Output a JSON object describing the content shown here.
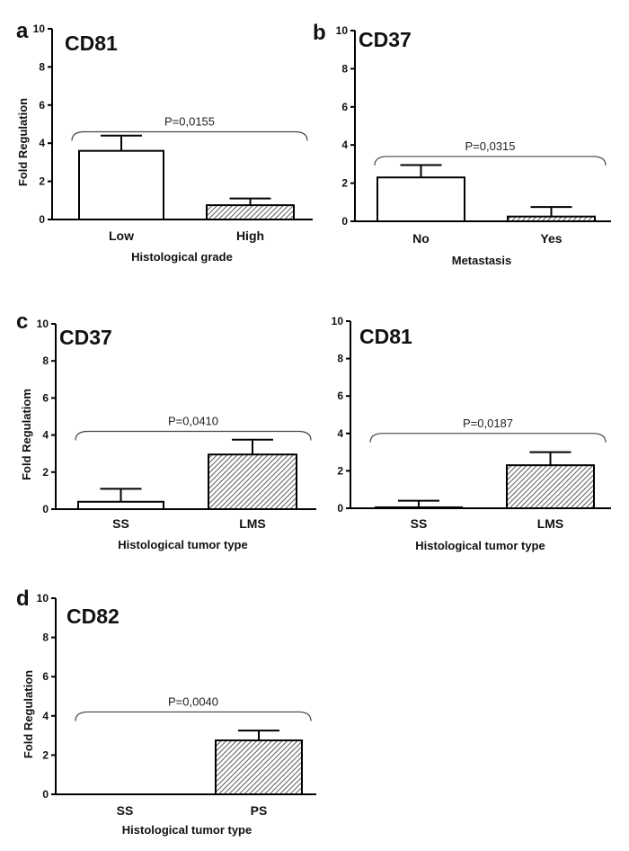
{
  "panel_letters": [
    "a",
    "b",
    "c",
    "d"
  ],
  "chart_data": [
    {
      "type": "bar",
      "panel": "a",
      "title": "CD81",
      "categories": [
        "Low",
        "High"
      ],
      "values": [
        3.6,
        0.75
      ],
      "errors": [
        0.8,
        0.35
      ],
      "fills": [
        "white",
        "hatch"
      ],
      "xlabel": "Histological  grade",
      "ylabel": "Fold Regulation",
      "ylim": [
        0,
        10
      ],
      "yticks": [
        0,
        2,
        4,
        6,
        8,
        10
      ],
      "pvalue": "P=0,0155",
      "bracket_y": 4.6
    },
    {
      "type": "bar",
      "panel": "b",
      "title": "CD37",
      "categories": [
        "No",
        "Yes"
      ],
      "values": [
        2.3,
        0.25
      ],
      "errors": [
        0.65,
        0.5
      ],
      "fills": [
        "white",
        "hatch"
      ],
      "xlabel": "Metastasis",
      "ylabel": "",
      "ylim": [
        0,
        10
      ],
      "yticks": [
        0,
        2,
        4,
        6,
        8,
        10
      ],
      "pvalue": "P=0,0315",
      "bracket_y": 3.4
    },
    {
      "type": "bar",
      "panel": "c",
      "title": "CD37",
      "categories": [
        "SS",
        "LMS"
      ],
      "values": [
        0.4,
        2.95
      ],
      "errors": [
        0.7,
        0.8
      ],
      "fills": [
        "white",
        "hatch"
      ],
      "xlabel": "Histological  tumor type",
      "ylabel": "Fold Regulatiom",
      "ylim": [
        0,
        10
      ],
      "yticks": [
        0,
        2,
        4,
        6,
        8,
        10
      ],
      "pvalue": "P=0,0410",
      "bracket_y": 4.2
    },
    {
      "type": "bar",
      "panel": "c",
      "title": "CD81",
      "categories": [
        "SS",
        "LMS"
      ],
      "values": [
        0.05,
        2.3
      ],
      "errors": [
        0.35,
        0.7
      ],
      "fills": [
        "white",
        "hatch"
      ],
      "xlabel": "Histological  tumor type",
      "ylabel": "",
      "ylim": [
        0,
        10
      ],
      "yticks": [
        0,
        2,
        4,
        6,
        8,
        10
      ],
      "pvalue": "P=0,0187",
      "bracket_y": 4.0
    },
    {
      "type": "bar",
      "panel": "d",
      "title": "CD82",
      "categories": [
        "SS",
        "PS"
      ],
      "values": [
        0,
        2.75
      ],
      "errors": [
        0,
        0.5
      ],
      "fills": [
        "white",
        "hatch"
      ],
      "xlabel": "Histological  tumor type",
      "ylabel": "Fold Regulation",
      "ylim": [
        0,
        10
      ],
      "yticks": [
        0,
        2,
        4,
        6,
        8,
        10
      ],
      "pvalue": "P=0,0040",
      "bracket_y": 4.2
    }
  ],
  "colors": {
    "axis": "#000000",
    "bar_fill": "#ffffff",
    "hatch": "#333333",
    "bracket": "#444444"
  }
}
